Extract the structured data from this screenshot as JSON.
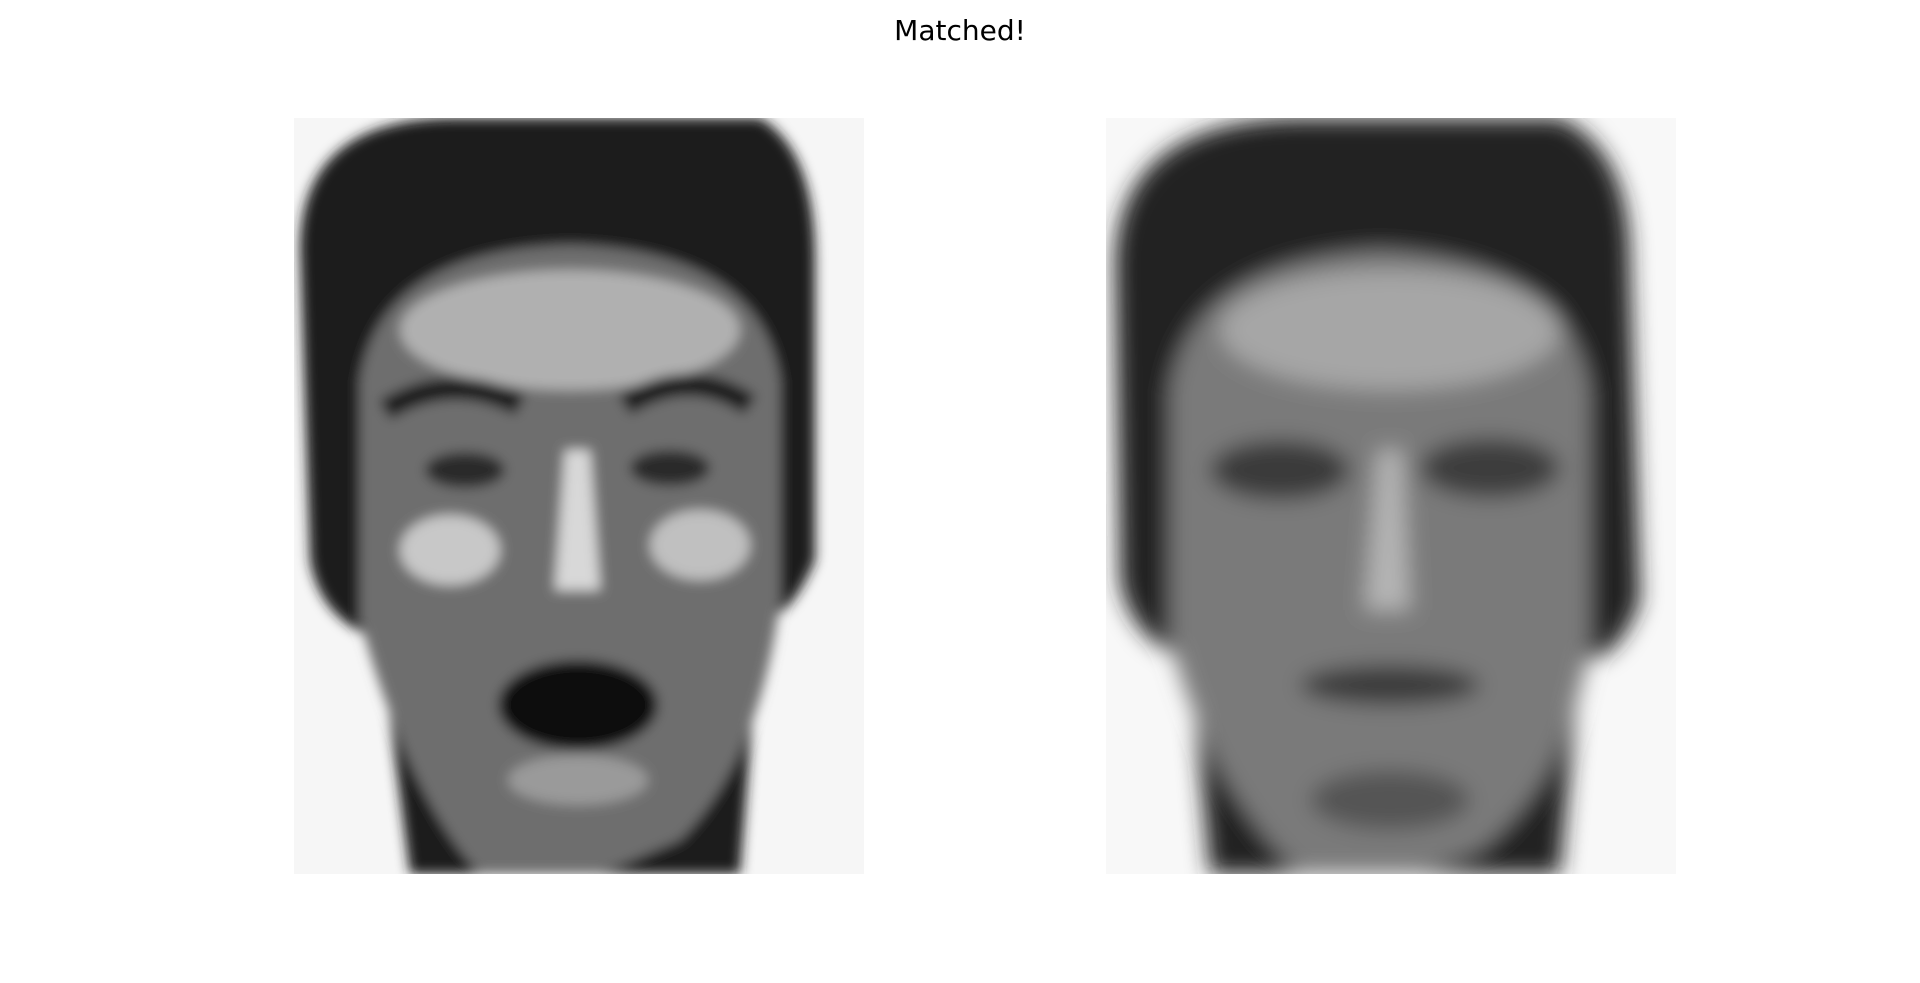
{
  "title": "Matched!"
}
